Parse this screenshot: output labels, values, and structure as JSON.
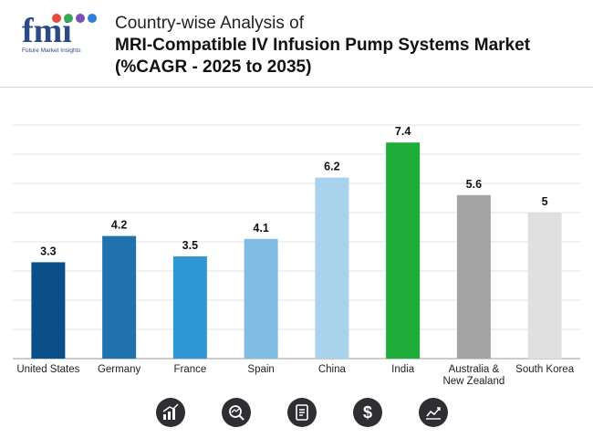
{
  "header": {
    "brand": "fmi",
    "brand_sub": "Future Market Insights",
    "title_line1": "Country-wise Analysis of",
    "title_line2": "MRI-Compatible IV Infusion Pump Systems Market",
    "title_line3": "(%CAGR - 2025 to 2035)"
  },
  "colors": {
    "brand_blue": "#2b4a8a",
    "icon_bg": "#2f2f33"
  },
  "chart_data": {
    "type": "bar",
    "title": "MRI-Compatible IV Infusion Pump Systems Market (%CAGR - 2025 to 2035)",
    "xlabel": "",
    "ylabel": "",
    "ylim": [
      0,
      8
    ],
    "grid": true,
    "categories": [
      [
        "United States"
      ],
      [
        "Germany"
      ],
      [
        "France"
      ],
      [
        "Spain"
      ],
      [
        "China"
      ],
      [
        "India"
      ],
      [
        "Australia &",
        "New Zealand"
      ],
      [
        "South Korea"
      ]
    ],
    "values": [
      3.3,
      4.2,
      3.5,
      4.1,
      6.2,
      7.4,
      5.6,
      5
    ],
    "value_labels": [
      "3.3",
      "4.2",
      "3.5",
      "4.1",
      "6.2",
      "7.4",
      "5.6",
      "5"
    ],
    "bar_colors": [
      "#0b4f8a",
      "#1f72ae",
      "#2f97d6",
      "#7fbde3",
      "#a9d3ec",
      "#1fad3a",
      "#a4a4a4",
      "#e0e0e0"
    ]
  },
  "footer_icons": [
    "bar-growth-icon",
    "magnifier-chart-icon",
    "document-icon",
    "dollar-icon",
    "trend-chart-icon"
  ]
}
